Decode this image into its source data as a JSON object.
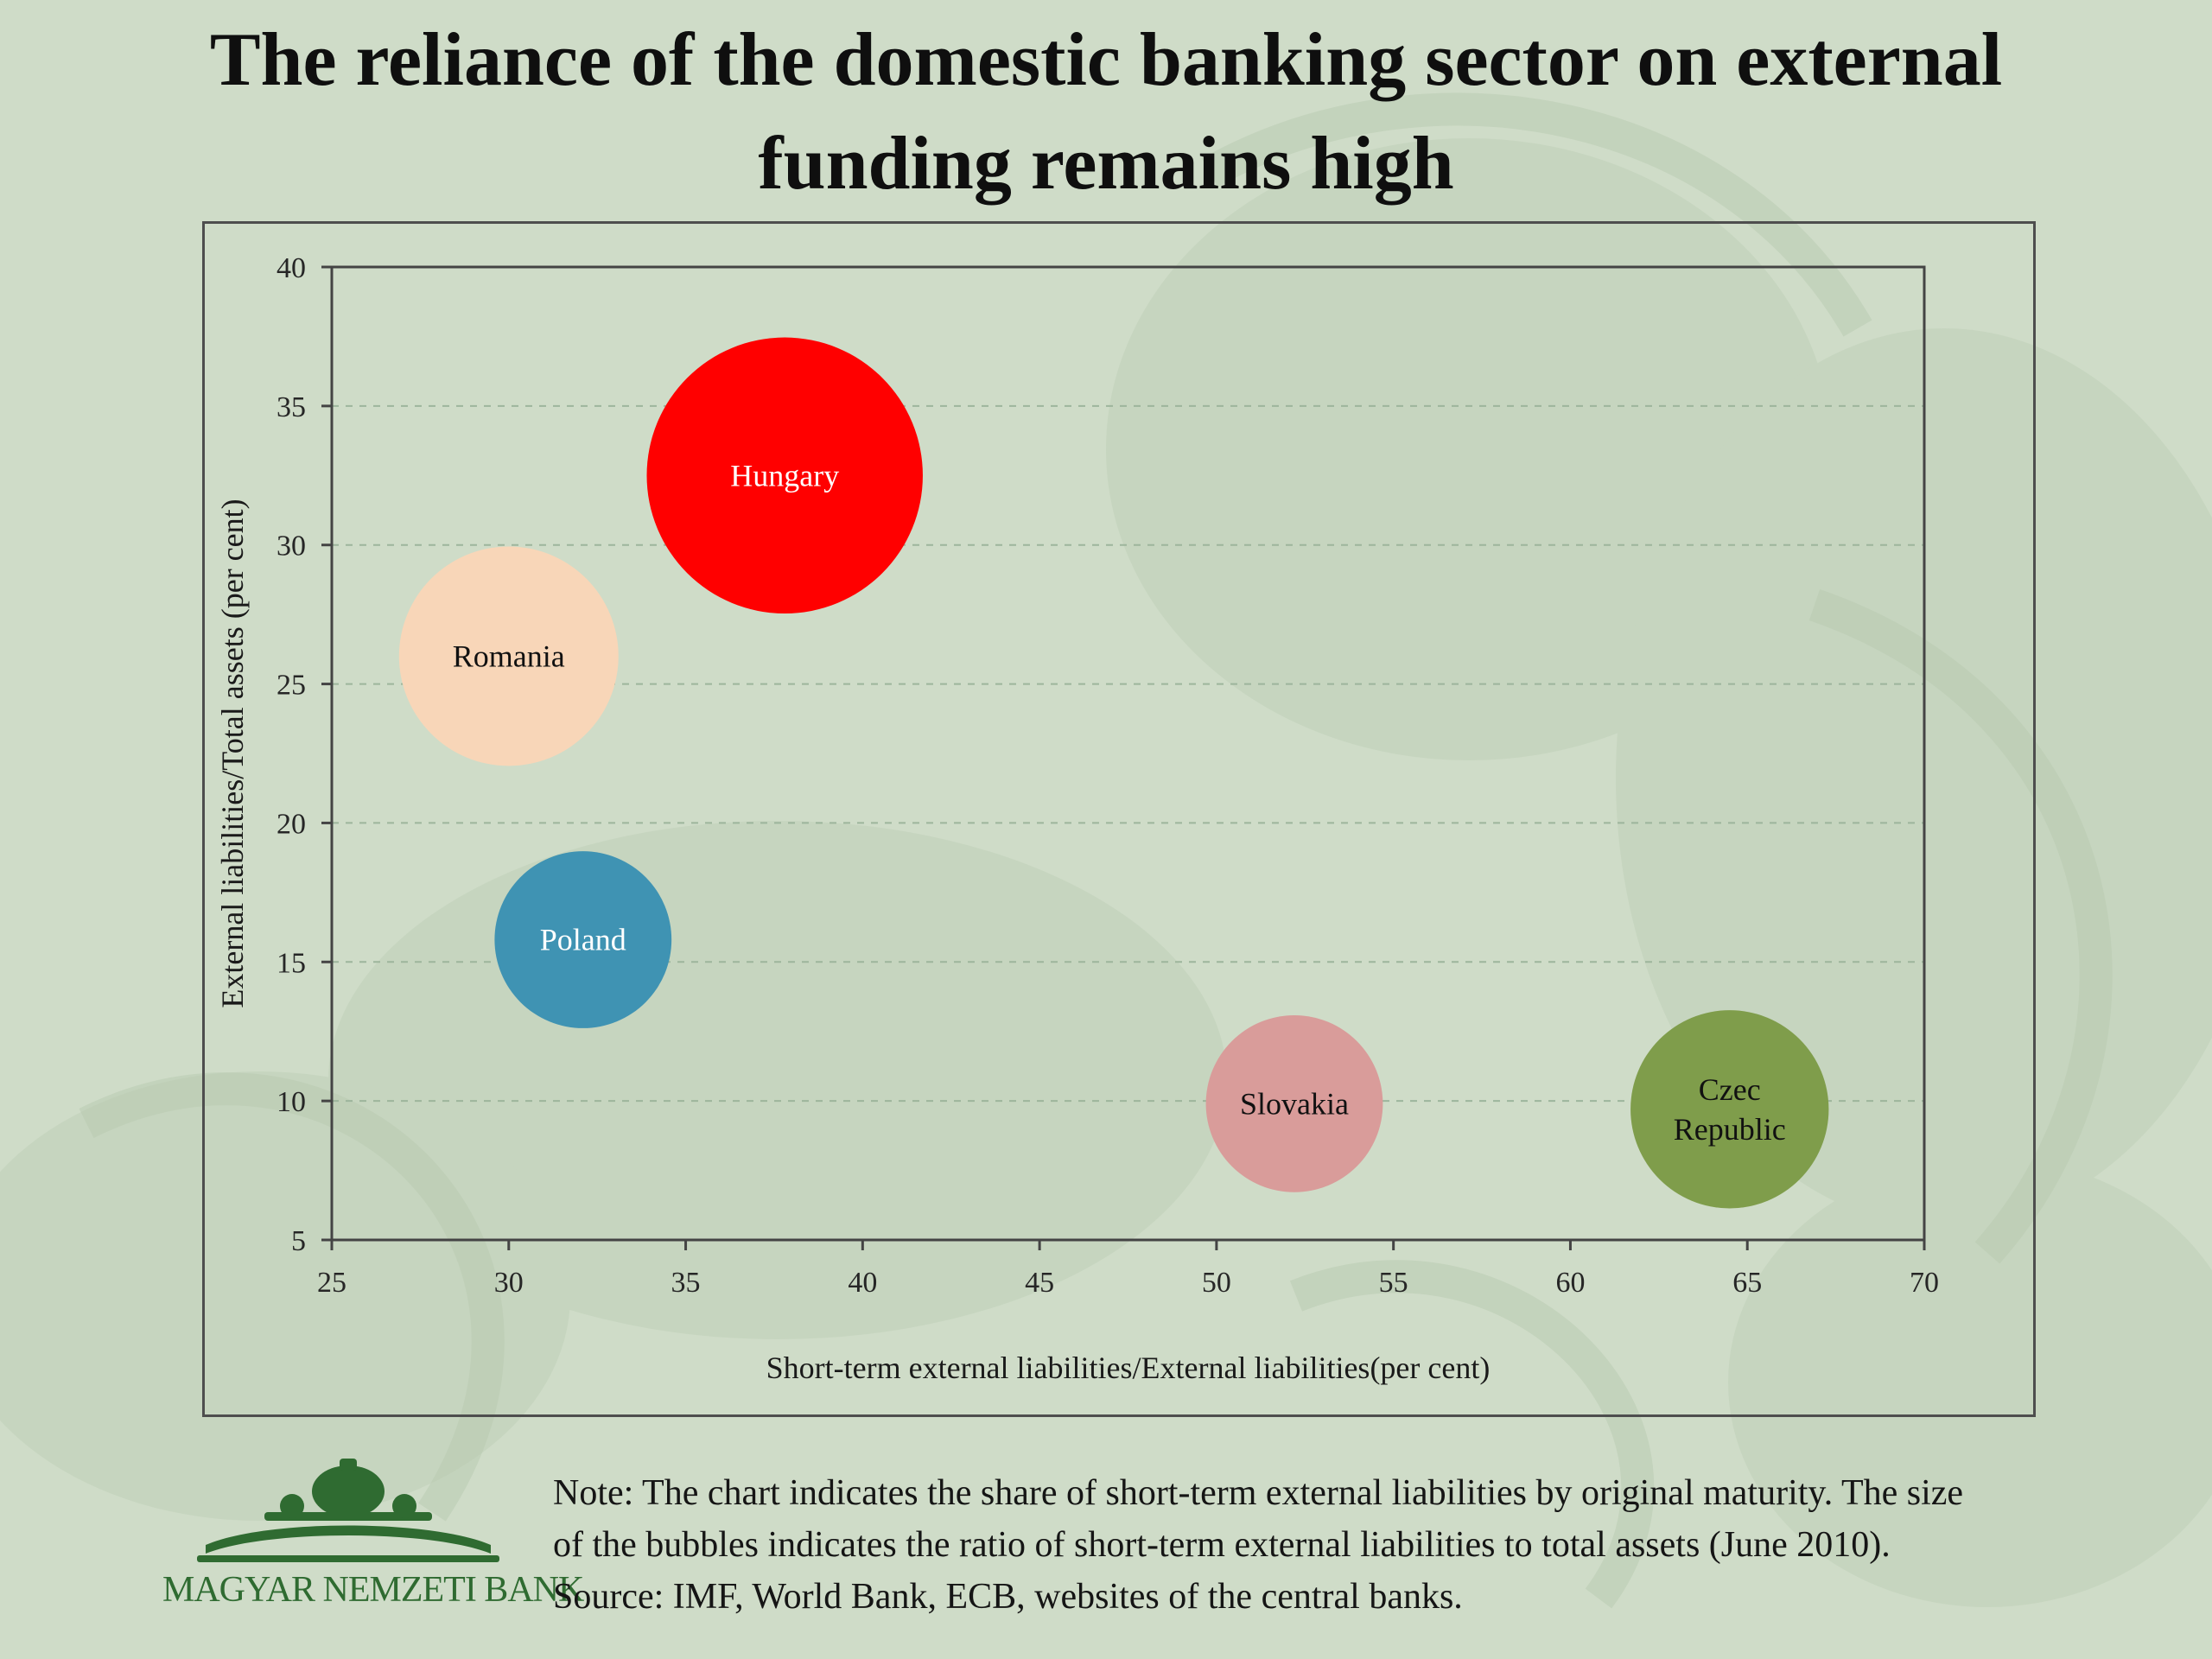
{
  "title": {
    "line1": "The reliance of the domestic banking sector on external",
    "line2": "funding remains high"
  },
  "colors": {
    "background": "#cfdcc8",
    "gridline": "#9db59c",
    "axis": "#444444"
  },
  "chart_data": {
    "type": "bubble",
    "xlabel": "Short-term external liabilities/External liabilities(per cent)",
    "ylabel": "External liabilities/Total assets  (per cent)",
    "xlim": [
      25,
      70
    ],
    "ylim": [
      5,
      40
    ],
    "xticks": [
      25,
      30,
      35,
      40,
      45,
      50,
      55,
      60,
      65,
      70
    ],
    "yticks": [
      5,
      10,
      15,
      20,
      25,
      30,
      35,
      40
    ],
    "grid": "horizontal dashed",
    "series": [
      {
        "name": "Hungary",
        "label_lines": [
          "Hungary"
        ],
        "x": 37.8,
        "y": 32.5,
        "size": 3.9,
        "color": "#ff0000",
        "label_color": "#ffffff"
      },
      {
        "name": "Romania",
        "label_lines": [
          "Romania"
        ],
        "x": 30.0,
        "y": 26.0,
        "size": 3.1,
        "color": "#f8d6b8",
        "label_color": "#111111"
      },
      {
        "name": "Poland",
        "label_lines": [
          "Poland"
        ],
        "x": 32.1,
        "y": 15.8,
        "size": 2.5,
        "color": "#3f93b3",
        "label_color": "#ffffff"
      },
      {
        "name": "Slovakia",
        "label_lines": [
          "Slovakia"
        ],
        "x": 52.2,
        "y": 9.9,
        "size": 2.5,
        "color": "#d99c9a",
        "label_color": "#111111"
      },
      {
        "name": "Czec Republic",
        "label_lines": [
          "Czec",
          "Republic"
        ],
        "x": 64.5,
        "y": 9.7,
        "size": 2.8,
        "color": "#7f9d4b",
        "label_color": "#111111"
      }
    ]
  },
  "footer": {
    "note_line1": "Note: The chart indicates the share of  short-term external liabilities by original maturity. The size",
    "note_line2": "of  the bubbles indicates the ratio of  short-term external liabilities to total assets (June 2010).",
    "source": "Source: IMF, World Bank, ECB, websites of  the central banks.",
    "logo_text": "MAGYAR NEMZETI BANK"
  }
}
